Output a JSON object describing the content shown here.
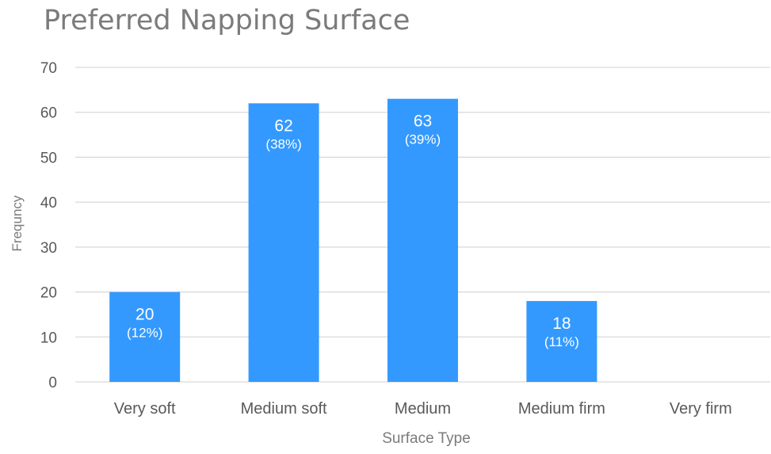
{
  "chart_data": {
    "type": "bar",
    "title": "Preferred Napping Surface",
    "xlabel": "Surface Type",
    "ylabel": "Frequncy",
    "categories": [
      "Very soft",
      "Medium soft",
      "Medium",
      "Medium firm",
      "Very firm"
    ],
    "values": [
      20,
      62,
      63,
      18,
      0
    ],
    "value_labels": [
      "20",
      "62",
      "63",
      "18",
      ""
    ],
    "percent_labels": [
      "(12%)",
      "(38%)",
      "(39%)",
      "(11%)",
      ""
    ],
    "ylim": [
      0,
      70
    ],
    "yticks": [
      0,
      10,
      20,
      30,
      40,
      50,
      60,
      70
    ],
    "grid": true,
    "legend": "none",
    "colors": {
      "bar": "#3399ff",
      "grid": "#d9d9d9",
      "axis_text": "#595959",
      "title": "#7b7b7b",
      "label_text": "#ffffff"
    }
  }
}
